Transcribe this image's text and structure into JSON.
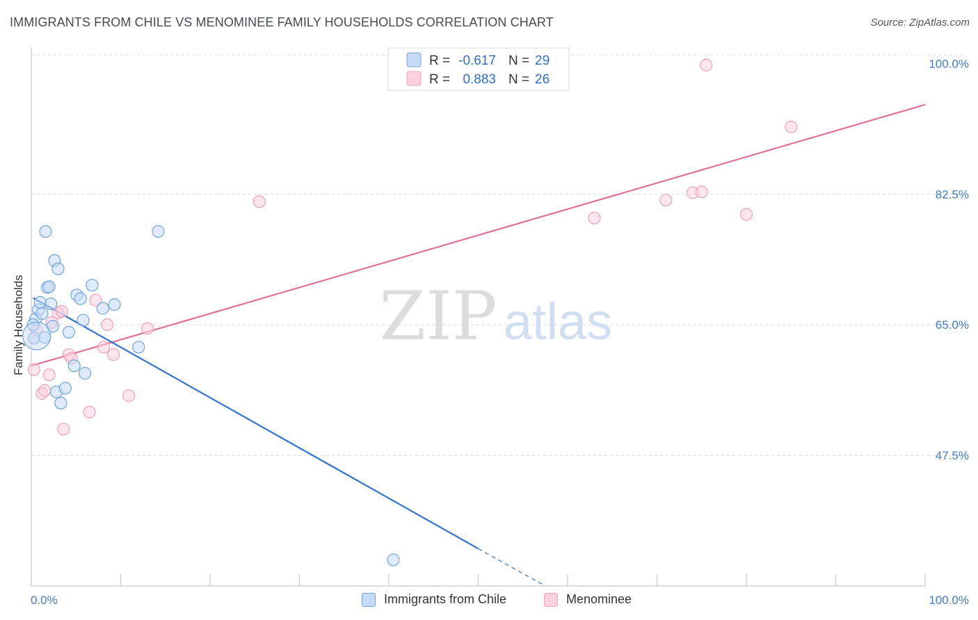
{
  "chart_data": {
    "type": "scatter",
    "title": "IMMIGRANTS FROM CHILE VS MENOMINEE FAMILY HOUSEHOLDS CORRELATION CHART",
    "source": "Source: ZipAtlas.com",
    "xlabel": "",
    "ylabel": "Family Households",
    "xlim": [
      0,
      100
    ],
    "ylim": [
      30,
      102
    ],
    "x_tick_labels": [
      "0.0%",
      "100.0%"
    ],
    "y_ticks": [
      47.5,
      65.0,
      82.5,
      100.0
    ],
    "y_tick_labels": [
      "47.5%",
      "65.0%",
      "82.5%",
      "100.0%"
    ],
    "watermark": {
      "zip": "ZIP",
      "atlas": "atlas"
    },
    "legend": [
      {
        "r_label": "R = ",
        "r_value": "-0.617",
        "n_label": "N = ",
        "n_value": "29"
      },
      {
        "r_label": "R = ",
        "r_value": "0.883",
        "n_label": "N = ",
        "n_value": "26"
      }
    ],
    "series": [
      {
        "name": "Immigrants from Chile",
        "color": "#6fa4e0",
        "fill": "#c5daf5",
        "line_color": "#2e72d2",
        "points": [
          [
            0.3,
            63.2
          ],
          [
            0.5,
            65.8
          ],
          [
            0.8,
            67.0
          ],
          [
            1.0,
            68.0
          ],
          [
            1.2,
            66.5
          ],
          [
            1.5,
            63.3
          ],
          [
            1.6,
            77.5
          ],
          [
            1.8,
            70.0
          ],
          [
            2.0,
            70.1
          ],
          [
            2.2,
            67.8
          ],
          [
            2.4,
            64.8
          ],
          [
            2.6,
            73.6
          ],
          [
            2.8,
            56.0
          ],
          [
            3.0,
            72.5
          ],
          [
            3.3,
            54.5
          ],
          [
            3.8,
            56.5
          ],
          [
            4.2,
            64.0
          ],
          [
            4.8,
            59.5
          ],
          [
            5.1,
            69.0
          ],
          [
            5.5,
            68.5
          ],
          [
            5.8,
            65.6
          ],
          [
            6.0,
            58.5
          ],
          [
            6.8,
            70.3
          ],
          [
            8.0,
            67.2
          ],
          [
            9.3,
            67.7
          ],
          [
            12.0,
            62.0
          ],
          [
            14.2,
            77.5
          ],
          [
            40.5,
            33.5
          ],
          [
            0.2,
            65.0
          ]
        ],
        "trend": {
          "x0": 0.2,
          "y0": 68.6,
          "x1": 50.0,
          "y1": 35.0,
          "dash_x1": 57.5,
          "dash_y1": 30.0
        }
      },
      {
        "name": "Menominee",
        "color": "#f0a0b8",
        "fill": "#fad0dd",
        "line_color": "#e07095",
        "points": [
          [
            0.3,
            59.0
          ],
          [
            0.6,
            64.3
          ],
          [
            1.2,
            55.8
          ],
          [
            1.5,
            56.2
          ],
          [
            2.0,
            58.3
          ],
          [
            2.3,
            65.3
          ],
          [
            3.0,
            66.6
          ],
          [
            3.4,
            66.8
          ],
          [
            3.6,
            51.0
          ],
          [
            4.2,
            61.0
          ],
          [
            4.5,
            60.5
          ],
          [
            6.5,
            53.3
          ],
          [
            7.2,
            68.3
          ],
          [
            8.1,
            62.0
          ],
          [
            8.5,
            65.0
          ],
          [
            9.2,
            61.0
          ],
          [
            10.9,
            55.5
          ],
          [
            13.0,
            64.5
          ],
          [
            25.5,
            81.5
          ],
          [
            63.0,
            79.3
          ],
          [
            71.0,
            81.7
          ],
          [
            74.0,
            82.7
          ],
          [
            75.0,
            82.8
          ],
          [
            80.0,
            79.8
          ],
          [
            75.5,
            99.8
          ],
          [
            85.0,
            91.5
          ]
        ],
        "trend": {
          "x0": 0.0,
          "y0": 59.5,
          "x1": 100.0,
          "y1": 94.5
        }
      }
    ]
  }
}
